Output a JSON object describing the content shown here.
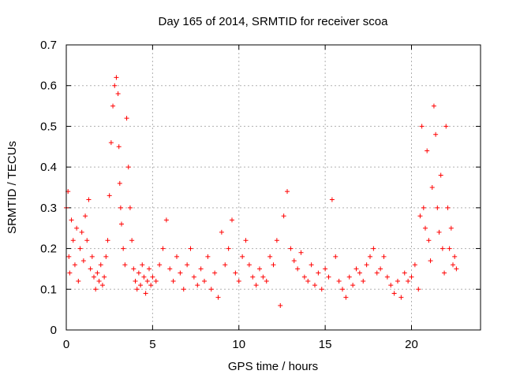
{
  "chart_data": {
    "type": "scatter",
    "title": "Day 165 of 2014, SRMTID for receiver scoa",
    "xlabel": "GPS time / hours",
    "ylabel": "SRMTID / TECUs",
    "xlim": [
      0,
      24
    ],
    "ylim": [
      0,
      0.7
    ],
    "x_ticks": [
      0,
      5,
      10,
      15,
      20
    ],
    "x_tick_labels": [
      "0",
      "5",
      "10",
      "15",
      "20"
    ],
    "y_ticks": [
      0,
      0.1,
      0.2,
      0.3,
      0.4,
      0.5,
      0.6,
      0.7
    ],
    "y_tick_labels": [
      "0",
      "0.1",
      "0.2",
      "0.3",
      "0.4",
      "0.5",
      "0.6",
      "0.7"
    ],
    "grid": true,
    "marker": "+",
    "color": "#ff0000",
    "series": [
      {
        "name": "SRMTID",
        "x": [
          0.0,
          0.1,
          0.15,
          0.2,
          0.3,
          0.4,
          0.5,
          0.6,
          0.7,
          0.8,
          0.9,
          1.0,
          1.1,
          1.2,
          1.3,
          1.4,
          1.5,
          1.6,
          1.7,
          1.8,
          1.9,
          2.0,
          2.1,
          2.2,
          2.3,
          2.4,
          2.5,
          2.6,
          2.7,
          2.8,
          2.9,
          3.0,
          3.05,
          3.1,
          3.15,
          3.2,
          3.3,
          3.4,
          3.5,
          3.6,
          3.7,
          3.8,
          3.9,
          4.0,
          4.1,
          4.2,
          4.3,
          4.4,
          4.5,
          4.6,
          4.7,
          4.8,
          4.9,
          5.0,
          5.2,
          5.4,
          5.6,
          5.8,
          6.0,
          6.2,
          6.4,
          6.6,
          6.8,
          7.0,
          7.2,
          7.4,
          7.6,
          7.8,
          8.0,
          8.2,
          8.4,
          8.6,
          8.8,
          9.0,
          9.2,
          9.4,
          9.6,
          9.8,
          10.0,
          10.2,
          10.4,
          10.6,
          10.8,
          11.0,
          11.2,
          11.4,
          11.6,
          11.8,
          12.0,
          12.2,
          12.4,
          12.6,
          12.8,
          13.0,
          13.2,
          13.4,
          13.6,
          13.8,
          14.0,
          14.2,
          14.4,
          14.6,
          14.8,
          15.0,
          15.2,
          15.4,
          15.6,
          15.8,
          16.0,
          16.2,
          16.4,
          16.6,
          16.8,
          17.0,
          17.2,
          17.4,
          17.6,
          17.8,
          18.0,
          18.2,
          18.4,
          18.6,
          18.8,
          19.0,
          19.2,
          19.4,
          19.6,
          19.8,
          20.0,
          20.2,
          20.4,
          20.5,
          20.6,
          20.7,
          20.8,
          20.9,
          21.0,
          21.1,
          21.2,
          21.3,
          21.4,
          21.5,
          21.6,
          21.7,
          21.8,
          21.9,
          22.0,
          22.1,
          22.2,
          22.3,
          22.4,
          22.5,
          22.6
        ],
        "y": [
          0.3,
          0.34,
          0.18,
          0.14,
          0.27,
          0.22,
          0.16,
          0.25,
          0.12,
          0.2,
          0.24,
          0.17,
          0.28,
          0.22,
          0.32,
          0.15,
          0.18,
          0.13,
          0.1,
          0.14,
          0.12,
          0.16,
          0.11,
          0.13,
          0.18,
          0.22,
          0.33,
          0.46,
          0.55,
          0.6,
          0.62,
          0.58,
          0.45,
          0.36,
          0.3,
          0.26,
          0.2,
          0.16,
          0.52,
          0.4,
          0.3,
          0.22,
          0.15,
          0.12,
          0.1,
          0.14,
          0.11,
          0.16,
          0.13,
          0.09,
          0.12,
          0.15,
          0.11,
          0.13,
          0.12,
          0.16,
          0.2,
          0.27,
          0.15,
          0.12,
          0.18,
          0.14,
          0.1,
          0.16,
          0.2,
          0.13,
          0.11,
          0.15,
          0.12,
          0.18,
          0.1,
          0.14,
          0.08,
          0.24,
          0.16,
          0.2,
          0.27,
          0.14,
          0.12,
          0.18,
          0.22,
          0.16,
          0.13,
          0.11,
          0.15,
          0.13,
          0.12,
          0.18,
          0.16,
          0.22,
          0.06,
          0.28,
          0.34,
          0.2,
          0.17,
          0.15,
          0.19,
          0.13,
          0.12,
          0.16,
          0.11,
          0.14,
          0.1,
          0.15,
          0.13,
          0.32,
          0.18,
          0.12,
          0.1,
          0.08,
          0.13,
          0.11,
          0.15,
          0.14,
          0.12,
          0.16,
          0.18,
          0.2,
          0.14,
          0.15,
          0.18,
          0.13,
          0.11,
          0.09,
          0.12,
          0.08,
          0.14,
          0.12,
          0.13,
          0.16,
          0.1,
          0.28,
          0.5,
          0.3,
          0.25,
          0.44,
          0.22,
          0.17,
          0.35,
          0.55,
          0.48,
          0.3,
          0.24,
          0.38,
          0.2,
          0.14,
          0.5,
          0.3,
          0.2,
          0.25,
          0.16,
          0.18,
          0.15
        ]
      }
    ]
  }
}
